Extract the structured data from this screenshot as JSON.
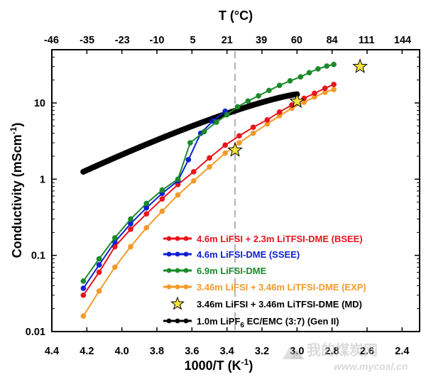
{
  "chart_data": {
    "type": "line",
    "x_axis": {
      "label": "1000/T (K",
      "label_sup": "-1",
      "label_tail": ")",
      "lim": [
        4.4,
        2.3
      ],
      "ticks": [
        "4.4",
        "4.2",
        "4.0",
        "3.8",
        "3.6",
        "3.4",
        "3.2",
        "3.0",
        "2.8",
        "2.6",
        "2.4"
      ]
    },
    "top_axis": {
      "label": "T (°C)",
      "ticks": [
        "-46",
        "-35",
        "-23",
        "-10",
        "5",
        "21",
        "39",
        "60",
        "84",
        "111",
        "144"
      ]
    },
    "y_axis": {
      "label": "Conductivity (mScm",
      "label_sup": "-1",
      "label_tail": ")",
      "scale": "log",
      "lim": [
        0.01,
        50
      ],
      "ticks": [
        "0.01",
        "0.1",
        "1",
        "10"
      ]
    },
    "reference_line": {
      "x": 3.354,
      "style": "dashed"
    },
    "series": [
      {
        "name": "4.6m LiFSI + 2.3m LiTFSI-DME (BSEE)",
        "color": "#e8141c",
        "marker": "circle",
        "x": [
          4.22,
          4.13,
          4.04,
          3.95,
          3.86,
          3.77,
          3.68,
          3.59,
          3.5,
          3.41,
          3.33,
          3.25,
          3.17,
          3.1,
          3.03,
          2.96,
          2.9,
          2.84,
          2.79
        ],
        "y": [
          0.03,
          0.06,
          0.13,
          0.22,
          0.35,
          0.55,
          0.85,
          1.25,
          1.9,
          2.8,
          3.7,
          4.8,
          6.0,
          7.6,
          9.4,
          11.5,
          13.4,
          15.6,
          17.5
        ]
      },
      {
        "name": "4.6m LiFSI-DME (SSEE)",
        "color": "#1020d0",
        "marker": "circle",
        "x": [
          4.22,
          4.13,
          4.04,
          3.95,
          3.86,
          3.77,
          3.68,
          3.62,
          3.55,
          3.48,
          3.41
        ],
        "y": [
          0.037,
          0.075,
          0.15,
          0.26,
          0.42,
          0.65,
          0.95,
          1.8,
          4.0,
          5.8,
          7.8
        ]
      },
      {
        "name": "6.9m LiFSI-DME",
        "color": "#1a8a2a",
        "marker": "circle",
        "x": [
          4.22,
          4.13,
          4.04,
          3.95,
          3.86,
          3.77,
          3.68,
          3.61,
          3.53,
          3.46,
          3.4,
          3.34,
          3.28,
          3.22,
          3.16,
          3.1,
          3.04,
          2.98,
          2.93,
          2.88,
          2.83,
          2.79
        ],
        "y": [
          0.046,
          0.09,
          0.17,
          0.3,
          0.48,
          0.72,
          1.0,
          3.0,
          4.2,
          5.6,
          7.0,
          8.9,
          10.6,
          12.4,
          14.6,
          17.0,
          19.5,
          22.0,
          25.0,
          28.0,
          30.5,
          32.0
        ]
      },
      {
        "name": "3.46m LiFSI + 3.46m LiTFSI-DME (EXP)",
        "color": "#f39a2a",
        "marker": "circle",
        "x": [
          4.22,
          4.13,
          4.04,
          3.95,
          3.86,
          3.77,
          3.68,
          3.59,
          3.5,
          3.41,
          3.33,
          3.25,
          3.17,
          3.1,
          3.03,
          2.96,
          2.9,
          2.84,
          2.79
        ],
        "y": [
          0.016,
          0.034,
          0.07,
          0.13,
          0.23,
          0.38,
          0.62,
          0.95,
          1.45,
          2.2,
          3.0,
          4.0,
          5.3,
          6.8,
          8.5,
          10.2,
          12.0,
          13.8,
          15.0
        ]
      },
      {
        "name": "3.46m LiFSI + 3.46m LiTFSI-DME (MD)",
        "color": "#f2e33c",
        "marker": "star",
        "x": [
          3.354,
          3.0,
          2.64
        ],
        "y": [
          2.4,
          10.5,
          30.0
        ]
      },
      {
        "name": "1.0m LiPF6 EC/EMC (3:7) (Gen II)",
        "name_display": [
          "1.0m LiPF",
          "6",
          " EC/EMC (3:7) (Gen II)"
        ],
        "color": "#000000",
        "marker": "circle-dense",
        "x_range": [
          4.22,
          3.0
        ],
        "y_range": [
          1.25,
          13.0
        ]
      }
    ]
  },
  "watermark": {
    "text": "我的煤炭网",
    "url": "www.mycoal.cn"
  }
}
